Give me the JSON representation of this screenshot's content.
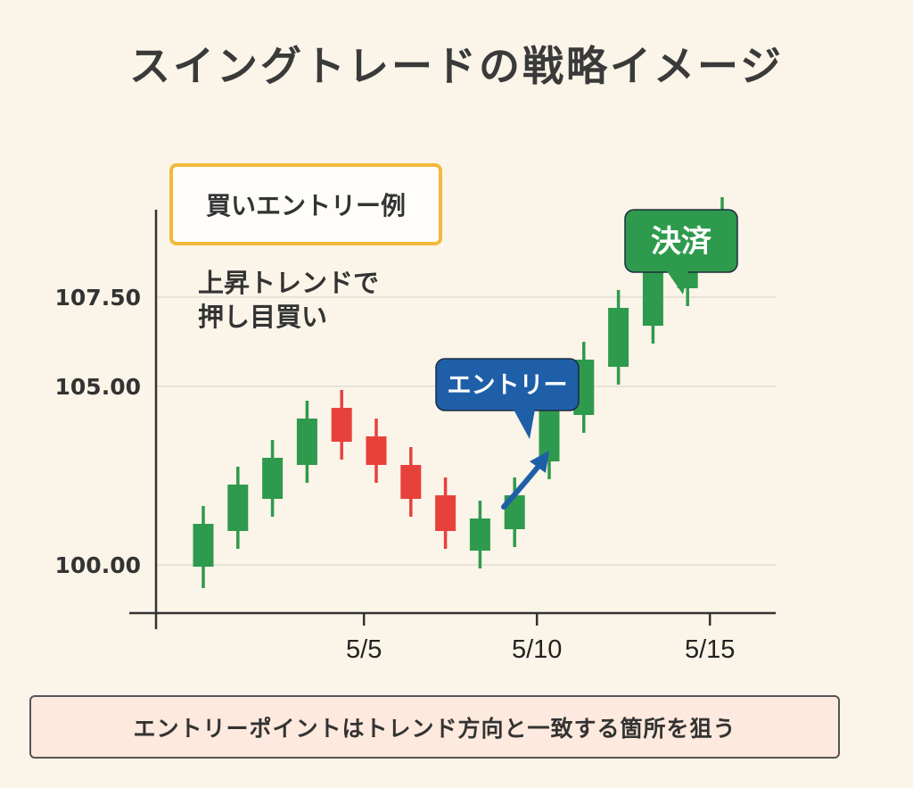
{
  "title": "スイングトレードの戦略イメージ",
  "example_label": "買いエントリー例",
  "description_lines": [
    "上昇トレンドで",
    "押し目買い"
  ],
  "footer_text": "エントリーポイントはトレンド方向と一致する箇所を狙う",
  "colors": {
    "up": "#2e9a4d",
    "down": "#e8413c",
    "entry_callout": "#1f5fa8",
    "exit_callout": "#2e9a4d",
    "box_border": "#f2b93b",
    "footer_bg": "#fde9dd"
  },
  "chart_data": {
    "type": "candlestick",
    "title": "スイングトレードの戦略イメージ",
    "y_ticks": [
      "100.00",
      "105.00",
      "107.50"
    ],
    "y_tick_values": [
      100.0,
      105.0,
      107.5
    ],
    "x_ticks": [
      "5/5",
      "5/10",
      "5/15"
    ],
    "x_tick_days": [
      5,
      10,
      15
    ],
    "grid": true,
    "candles": [
      {
        "day": 1,
        "open": 99.95,
        "close": 101.15,
        "high": 101.65,
        "low": 99.35,
        "dir": "up"
      },
      {
        "day": 2,
        "open": 100.95,
        "close": 102.25,
        "high": 102.75,
        "low": 100.45,
        "dir": "up"
      },
      {
        "day": 3,
        "open": 101.85,
        "close": 103.0,
        "high": 103.5,
        "low": 101.35,
        "dir": "up"
      },
      {
        "day": 4,
        "open": 102.8,
        "close": 104.1,
        "high": 104.6,
        "low": 102.3,
        "dir": "up"
      },
      {
        "day": 5,
        "open": 104.4,
        "close": 103.45,
        "high": 104.9,
        "low": 102.95,
        "dir": "down"
      },
      {
        "day": 6,
        "open": 103.6,
        "close": 102.8,
        "high": 104.1,
        "low": 102.3,
        "dir": "down"
      },
      {
        "day": 7,
        "open": 102.8,
        "close": 101.85,
        "high": 103.3,
        "low": 101.35,
        "dir": "down"
      },
      {
        "day": 8,
        "open": 101.95,
        "close": 100.95,
        "high": 102.45,
        "low": 100.45,
        "dir": "down"
      },
      {
        "day": 9,
        "open": 100.4,
        "close": 101.3,
        "high": 101.8,
        "low": 99.9,
        "dir": "up"
      },
      {
        "day": 10,
        "open": 101.0,
        "close": 101.95,
        "high": 102.45,
        "low": 100.5,
        "dir": "up"
      },
      {
        "day": 11,
        "open": 102.9,
        "close": 104.35,
        "high": 104.85,
        "low": 102.4,
        "dir": "up"
      },
      {
        "day": 12,
        "open": 104.2,
        "close": 105.75,
        "high": 106.25,
        "low": 103.7,
        "dir": "up"
      },
      {
        "day": 13,
        "open": 105.55,
        "close": 107.2,
        "high": 107.7,
        "low": 105.05,
        "dir": "up"
      },
      {
        "day": 14,
        "open": 106.7,
        "close": 108.3,
        "high": 108.8,
        "low": 106.2,
        "dir": "up"
      },
      {
        "day": 15,
        "open": 107.75,
        "close": 108.9,
        "high": 109.4,
        "low": 107.25,
        "dir": "up"
      },
      {
        "day": 16,
        "open": 108.7,
        "close": 109.8,
        "high": 110.3,
        "low": 108.2,
        "dir": "up"
      }
    ],
    "annotations": [
      {
        "label": "エントリー",
        "at_day": 10,
        "kind": "entry"
      },
      {
        "label": "決済",
        "at_day": 14,
        "kind": "exit"
      }
    ]
  }
}
